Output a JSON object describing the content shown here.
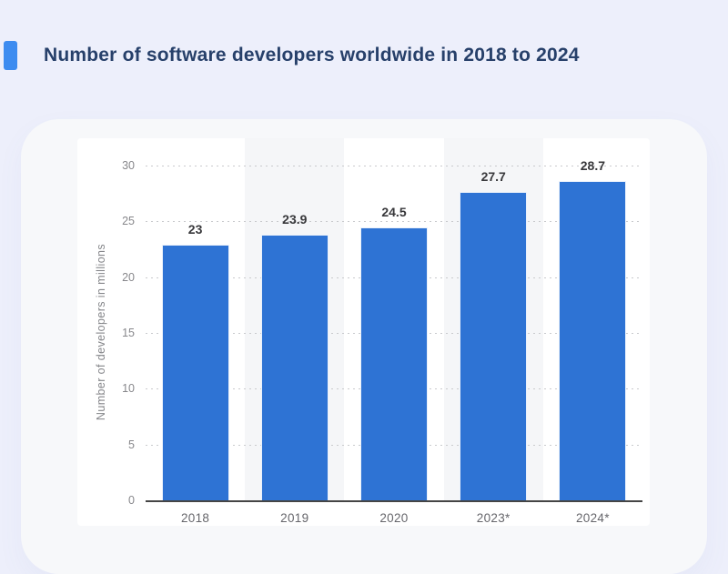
{
  "page": {
    "title": "Number of software developers worldwide in 2018 to 2024"
  },
  "colors": {
    "accent_marker": "#3d8cf0",
    "bar": "#2e73d4",
    "title_text": "#27406a",
    "page_bg": "#edeffb",
    "card_bg": "#f7f8fa",
    "panel_bg": "#ffffff",
    "plot_band": "#f5f6f8",
    "gridline": "#c9cacd",
    "axis_line": "#454545",
    "tick_text": "#87878b",
    "x_label_text": "#66666b",
    "value_text": "#38383b"
  },
  "chart_data": {
    "type": "bar",
    "title": "Number of software developers worldwide in 2018 to 2024",
    "categories": [
      "2018",
      "2019",
      "2020",
      "2023*",
      "2024*"
    ],
    "values": [
      23,
      23.9,
      24.5,
      27.7,
      28.7
    ],
    "value_labels": [
      "23",
      "23.9",
      "24.5",
      "27.7",
      "28.7"
    ],
    "xlabel": "",
    "ylabel": "Number of developers in millions",
    "ylim": [
      0,
      30
    ],
    "yticks": [
      0,
      5,
      10,
      15,
      20,
      25,
      30
    ],
    "grid": "horizontal-dotted",
    "legend": "none",
    "plot_bands": "alternating category background, gray on 2019 and 2023*"
  }
}
